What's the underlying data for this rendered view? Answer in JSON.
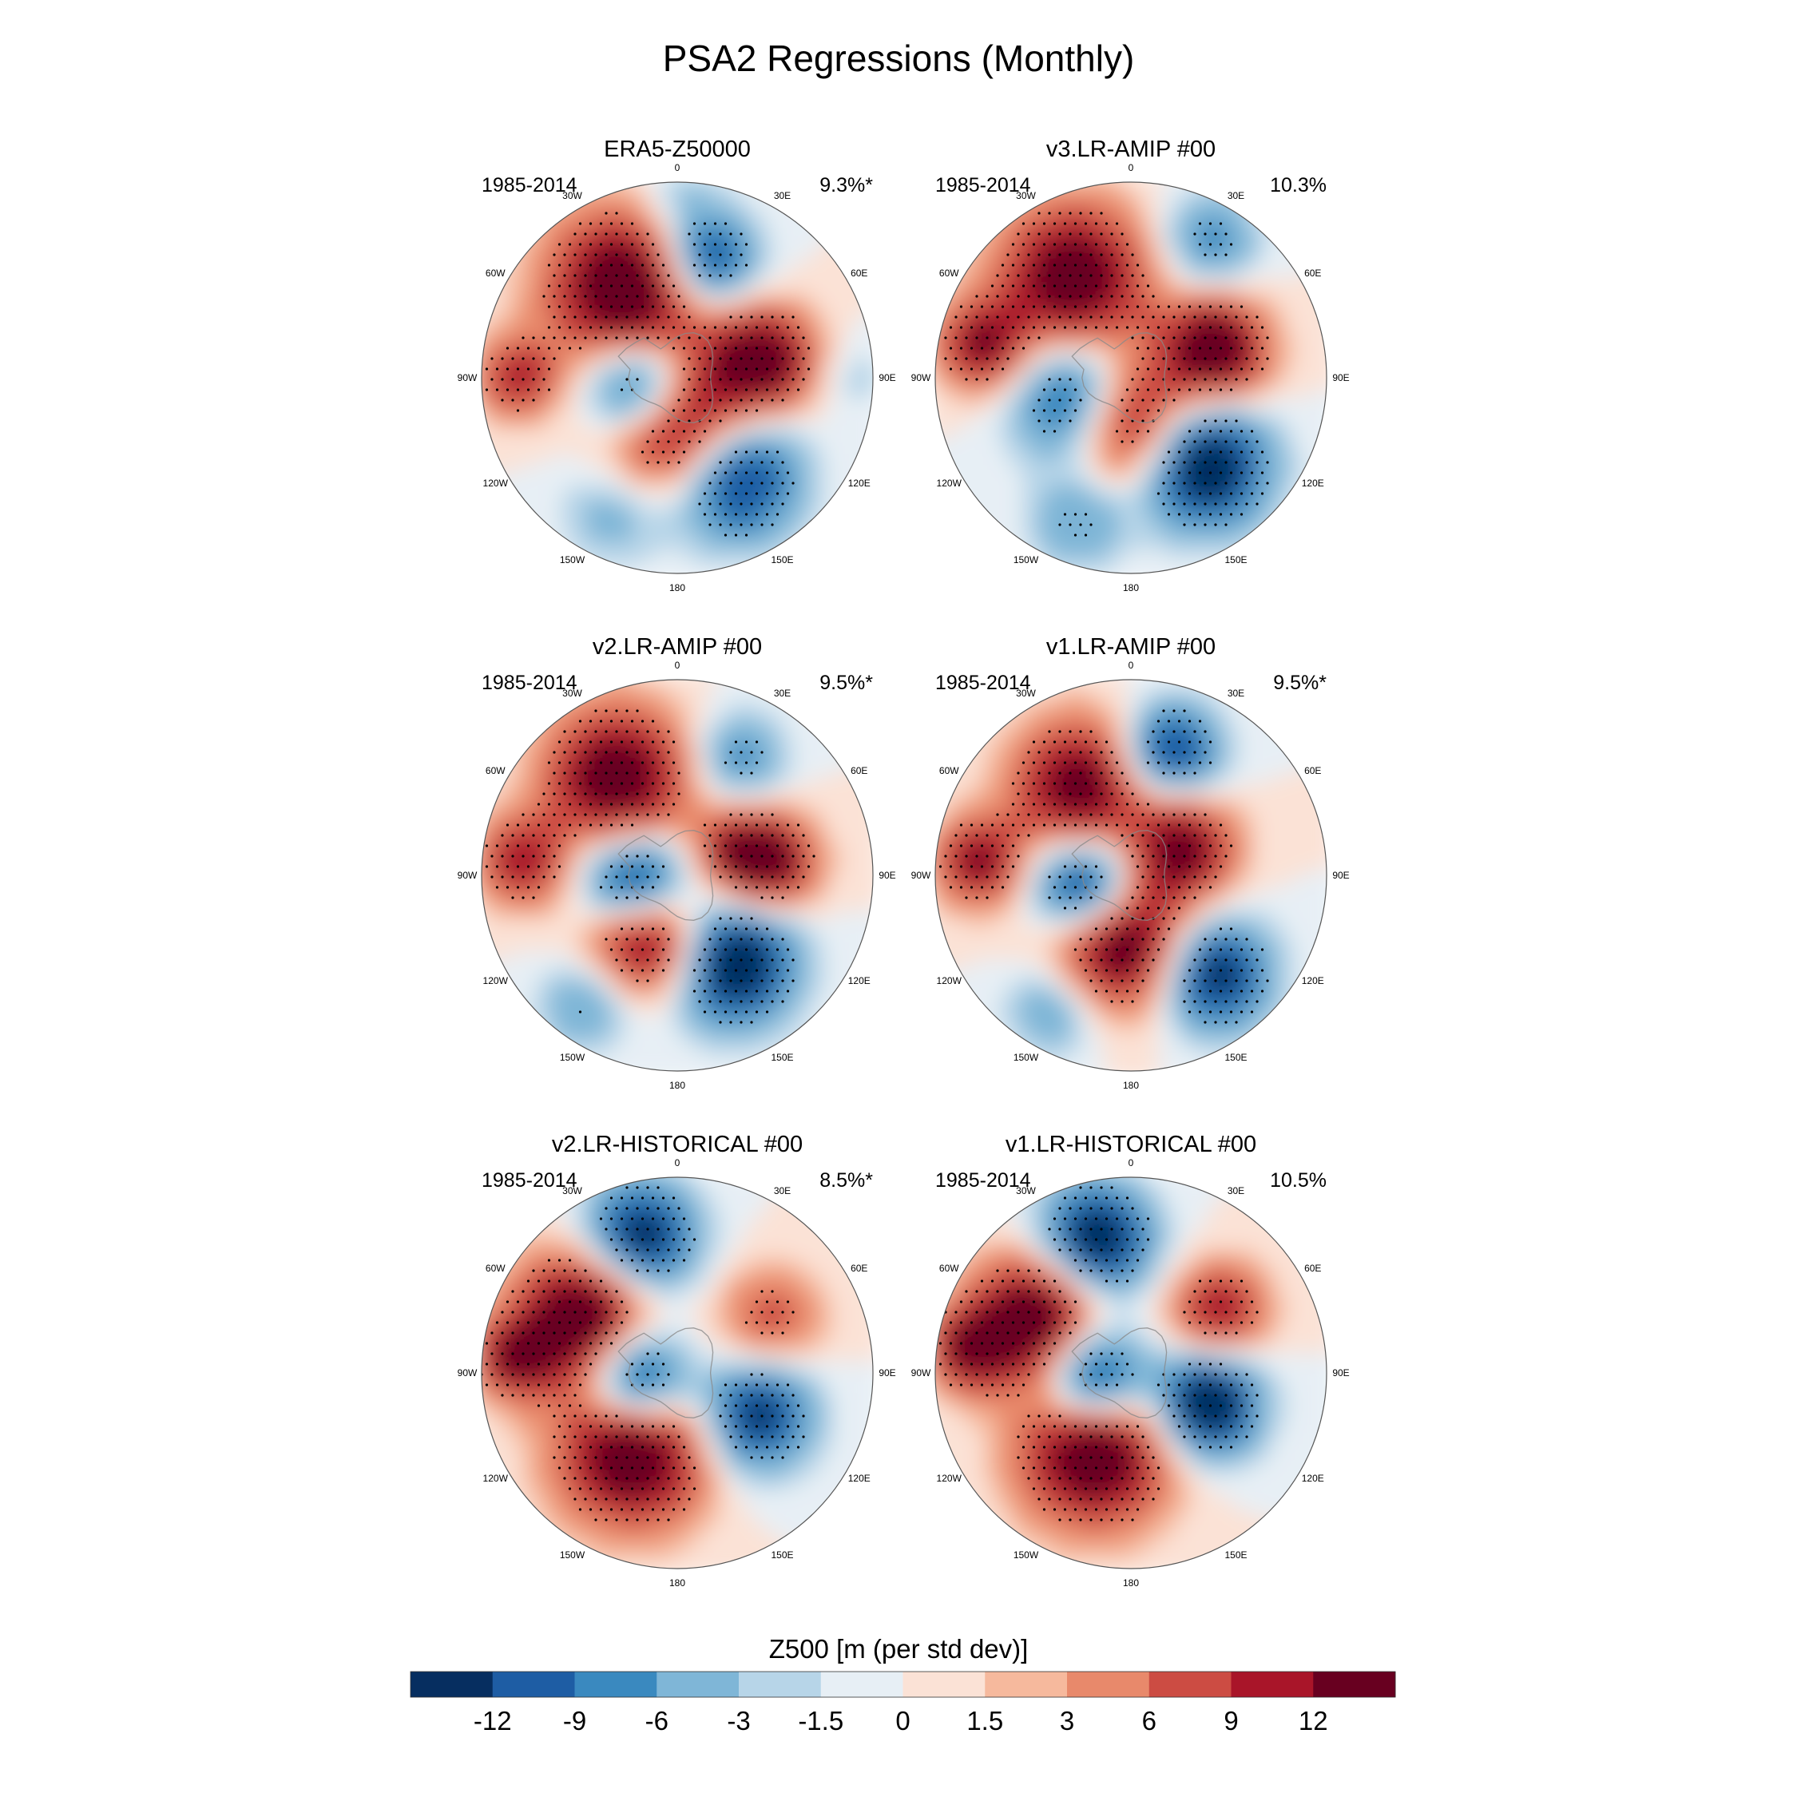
{
  "chart_data": {
    "type": "heatmap",
    "title": "PSA2 Regressions (Monthly)",
    "projection": "south polar stereographic",
    "colorbar": {
      "label": "Z500 [m (per std dev)]",
      "ticks": [
        "-12",
        "-9",
        "-6",
        "-3",
        "-1.5",
        "0",
        "1.5",
        "3",
        "6",
        "9",
        "12"
      ],
      "colors": [
        "#062e60",
        "#1e5da4",
        "#3a89bf",
        "#7fb6d7",
        "#b7d5e8",
        "#e7eff5",
        "#fbe2d6",
        "#f6b99d",
        "#e8896b",
        "#cc4c43",
        "#a91529",
        "#680020"
      ]
    },
    "longitude_labels": [
      {
        "deg": 0,
        "text": "0"
      },
      {
        "deg": 30,
        "text": "30E"
      },
      {
        "deg": 60,
        "text": "60E"
      },
      {
        "deg": 90,
        "text": "90E"
      },
      {
        "deg": 120,
        "text": "120E"
      },
      {
        "deg": 150,
        "text": "150E"
      },
      {
        "deg": 180,
        "text": "180"
      },
      {
        "deg": 210,
        "text": "150W"
      },
      {
        "deg": 240,
        "text": "120W"
      },
      {
        "deg": 270,
        "text": "90W"
      },
      {
        "deg": 300,
        "text": "60W"
      },
      {
        "deg": 330,
        "text": "30W"
      }
    ],
    "panels": [
      {
        "title": "ERA5-Z50000",
        "period": "1985-2014",
        "pct_variance": "9.3%*",
        "anomalies": [
          {
            "lon": 330,
            "r": 0.52,
            "value": 14,
            "size": 0.42
          },
          {
            "lon": 15,
            "r": 0.62,
            "value": -11,
            "size": 0.26
          },
          {
            "lon": 78,
            "r": 0.44,
            "value": 13,
            "size": 0.28
          },
          {
            "lon": 180,
            "r": 0.26,
            "value": 14,
            "size": 0.38
          },
          {
            "lon": 150,
            "r": 0.58,
            "value": -13,
            "size": 0.34
          },
          {
            "lon": 255,
            "r": 0.2,
            "value": -14,
            "size": 0.28
          },
          {
            "lon": 270,
            "r": 0.82,
            "value": 8,
            "size": 0.22
          },
          {
            "lon": 205,
            "r": 0.74,
            "value": -4,
            "size": 0.3
          },
          {
            "lon": 0,
            "r": 0.9,
            "value": -3,
            "size": 0.25
          },
          {
            "lon": 90,
            "r": 0.9,
            "value": -2,
            "size": 0.2
          }
        ]
      },
      {
        "title": "v3.LR-AMIP  #00",
        "period": "1985-2014",
        "pct_variance": "10.3%",
        "anomalies": [
          {
            "lon": 330,
            "r": 0.58,
            "value": 13,
            "size": 0.4
          },
          {
            "lon": 30,
            "r": 0.8,
            "value": -6,
            "size": 0.26
          },
          {
            "lon": 72,
            "r": 0.45,
            "value": 14,
            "size": 0.28
          },
          {
            "lon": 190,
            "r": 0.22,
            "value": 14,
            "size": 0.34
          },
          {
            "lon": 140,
            "r": 0.58,
            "value": -14,
            "size": 0.34
          },
          {
            "lon": 245,
            "r": 0.28,
            "value": -13,
            "size": 0.34
          },
          {
            "lon": 282,
            "r": 0.78,
            "value": 10,
            "size": 0.24
          },
          {
            "lon": 200,
            "r": 0.78,
            "value": -5,
            "size": 0.26
          }
        ]
      },
      {
        "title": "v2.LR-AMIP  #00",
        "period": "1985-2014",
        "pct_variance": "9.5%*",
        "anomalies": [
          {
            "lon": 328,
            "r": 0.58,
            "value": 13,
            "size": 0.38
          },
          {
            "lon": 28,
            "r": 0.68,
            "value": -6,
            "size": 0.24
          },
          {
            "lon": 82,
            "r": 0.46,
            "value": 13,
            "size": 0.26
          },
          {
            "lon": 205,
            "r": 0.34,
            "value": 14,
            "size": 0.32
          },
          {
            "lon": 148,
            "r": 0.52,
            "value": -14,
            "size": 0.34
          },
          {
            "lon": 258,
            "r": 0.22,
            "value": -14,
            "size": 0.28
          },
          {
            "lon": 275,
            "r": 0.8,
            "value": 9,
            "size": 0.24
          },
          {
            "lon": 215,
            "r": 0.8,
            "value": -5,
            "size": 0.26
          },
          {
            "lon": 60,
            "r": 0.3,
            "value": 5,
            "size": 0.2
          }
        ]
      },
      {
        "title": "v1.LR-AMIP  #00",
        "period": "1985-2014",
        "pct_variance": "9.5%*",
        "anomalies": [
          {
            "lon": 330,
            "r": 0.52,
            "value": 12,
            "size": 0.36
          },
          {
            "lon": 18,
            "r": 0.66,
            "value": -11,
            "size": 0.26
          },
          {
            "lon": 62,
            "r": 0.3,
            "value": 11,
            "size": 0.28
          },
          {
            "lon": 190,
            "r": 0.34,
            "value": 14,
            "size": 0.36
          },
          {
            "lon": 140,
            "r": 0.66,
            "value": -12,
            "size": 0.3
          },
          {
            "lon": 255,
            "r": 0.24,
            "value": -14,
            "size": 0.28
          },
          {
            "lon": 275,
            "r": 0.78,
            "value": 10,
            "size": 0.24
          },
          {
            "lon": 210,
            "r": 0.78,
            "value": -5,
            "size": 0.26
          }
        ]
      },
      {
        "title": "v2.LR-HISTORICAL  #00",
        "period": "1985-2014",
        "pct_variance": "8.5%*",
        "anomalies": [
          {
            "lon": 345,
            "r": 0.72,
            "value": -12,
            "size": 0.3
          },
          {
            "lon": 300,
            "r": 0.56,
            "value": 14,
            "size": 0.36
          },
          {
            "lon": 210,
            "r": 0.46,
            "value": 14,
            "size": 0.4
          },
          {
            "lon": 118,
            "r": 0.46,
            "value": -11,
            "size": 0.3
          },
          {
            "lon": 262,
            "r": 0.22,
            "value": -14,
            "size": 0.28
          },
          {
            "lon": 60,
            "r": 0.55,
            "value": 6,
            "size": 0.28
          },
          {
            "lon": 275,
            "r": 0.84,
            "value": 9,
            "size": 0.22
          }
        ]
      },
      {
        "title": "v1.LR-HISTORICAL  #00",
        "period": "1985-2014",
        "pct_variance": "10.5%",
        "anomalies": [
          {
            "lon": 345,
            "r": 0.7,
            "value": -13,
            "size": 0.3
          },
          {
            "lon": 300,
            "r": 0.56,
            "value": 14,
            "size": 0.34
          },
          {
            "lon": 205,
            "r": 0.44,
            "value": 14,
            "size": 0.4
          },
          {
            "lon": 112,
            "r": 0.42,
            "value": -14,
            "size": 0.28
          },
          {
            "lon": 262,
            "r": 0.2,
            "value": -14,
            "size": 0.28
          },
          {
            "lon": 55,
            "r": 0.55,
            "value": 9,
            "size": 0.26
          },
          {
            "lon": 278,
            "r": 0.84,
            "value": 10,
            "size": 0.22
          }
        ]
      }
    ]
  }
}
